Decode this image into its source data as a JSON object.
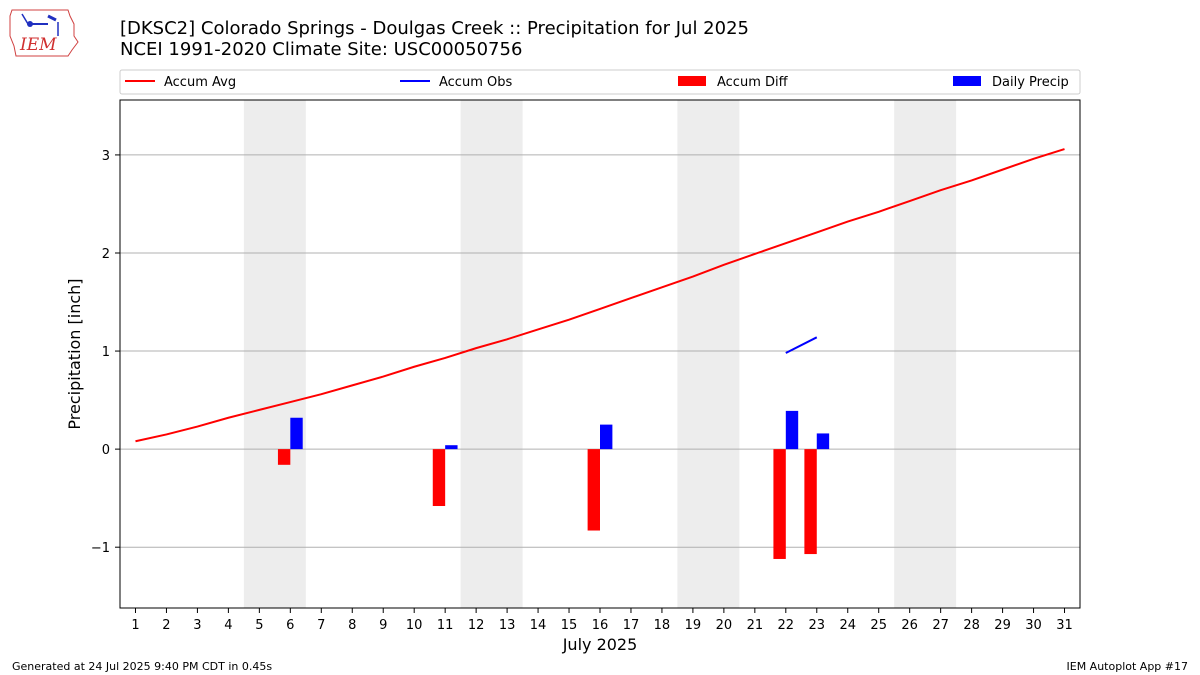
{
  "header": {
    "title_line1": "[DKSC2] Colorado Springs - Doulgas Creek :: Precipitation for Jul 2025",
    "title_line2": "NCEI 1991-2020 Climate Site: USC00050756",
    "logo_text": "IEM"
  },
  "footer": {
    "generated": "Generated at 24 Jul 2025 9:40 PM CDT in 0.45s",
    "app": "IEM Autoplot App #17"
  },
  "chart_data": {
    "type": "bar",
    "title": "[DKSC2] Colorado Springs - Doulgas Creek :: Precipitation for Jul 2025",
    "subtitle": "NCEI 1991-2020 Climate Site: USC00050756",
    "xlabel": "July 2025",
    "ylabel": "Precipitation [inch]",
    "xlim": [
      0.5,
      31.5
    ],
    "ylim": [
      -1.62,
      3.56
    ],
    "x_ticks": [
      1,
      2,
      3,
      4,
      5,
      6,
      7,
      8,
      9,
      10,
      11,
      12,
      13,
      14,
      15,
      16,
      17,
      18,
      19,
      20,
      21,
      22,
      23,
      24,
      25,
      26,
      27,
      28,
      29,
      30,
      31
    ],
    "y_ticks": [
      -1,
      0,
      1,
      2,
      3
    ],
    "y_tick_labels": [
      "−1",
      "0",
      "1",
      "2",
      "3"
    ],
    "grid": "horizontal",
    "legend_placement": "top",
    "weekend_bands": [
      [
        4.5,
        6.5
      ],
      [
        11.5,
        13.5
      ],
      [
        18.5,
        20.5
      ],
      [
        25.5,
        27.5
      ]
    ],
    "colors": {
      "accum_avg": "#ff0000",
      "accum_obs": "#0000ff",
      "accum_diff": "#ff0000",
      "daily_precip": "#0000ff",
      "band": "#ededed",
      "grid": "#b0b0b0"
    },
    "legend": [
      {
        "label": "Accum Avg",
        "kind": "line",
        "color": "#ff0000"
      },
      {
        "label": "Accum Obs",
        "kind": "line",
        "color": "#0000ff"
      },
      {
        "label": "Accum Diff",
        "kind": "bar",
        "color": "#ff0000"
      },
      {
        "label": "Daily Precip",
        "kind": "bar",
        "color": "#0000ff"
      }
    ],
    "series": [
      {
        "name": "Accum Avg",
        "kind": "line",
        "x": [
          1,
          2,
          3,
          4,
          5,
          6,
          7,
          8,
          9,
          10,
          11,
          12,
          13,
          14,
          15,
          16,
          17,
          18,
          19,
          20,
          21,
          22,
          23,
          24,
          25,
          26,
          27,
          28,
          29,
          30,
          31
        ],
        "values": [
          0.08,
          0.15,
          0.23,
          0.32,
          0.4,
          0.48,
          0.56,
          0.65,
          0.74,
          0.84,
          0.93,
          1.03,
          1.12,
          1.22,
          1.32,
          1.43,
          1.54,
          1.65,
          1.76,
          1.88,
          1.99,
          2.1,
          2.21,
          2.32,
          2.42,
          2.53,
          2.64,
          2.74,
          2.85,
          2.96,
          3.06
        ]
      },
      {
        "name": "Accum Obs",
        "kind": "line",
        "x": [
          22,
          23
        ],
        "values": [
          0.98,
          1.14
        ]
      },
      {
        "name": "Accum Diff",
        "kind": "bar",
        "x": [
          6,
          11,
          16,
          22,
          23
        ],
        "values": [
          -0.16,
          -0.58,
          -0.83,
          -1.12,
          -1.07
        ]
      },
      {
        "name": "Daily Precip",
        "kind": "bar",
        "x": [
          6,
          11,
          16,
          22,
          23
        ],
        "values": [
          0.32,
          0.04,
          0.25,
          0.39,
          0.16
        ]
      }
    ]
  }
}
